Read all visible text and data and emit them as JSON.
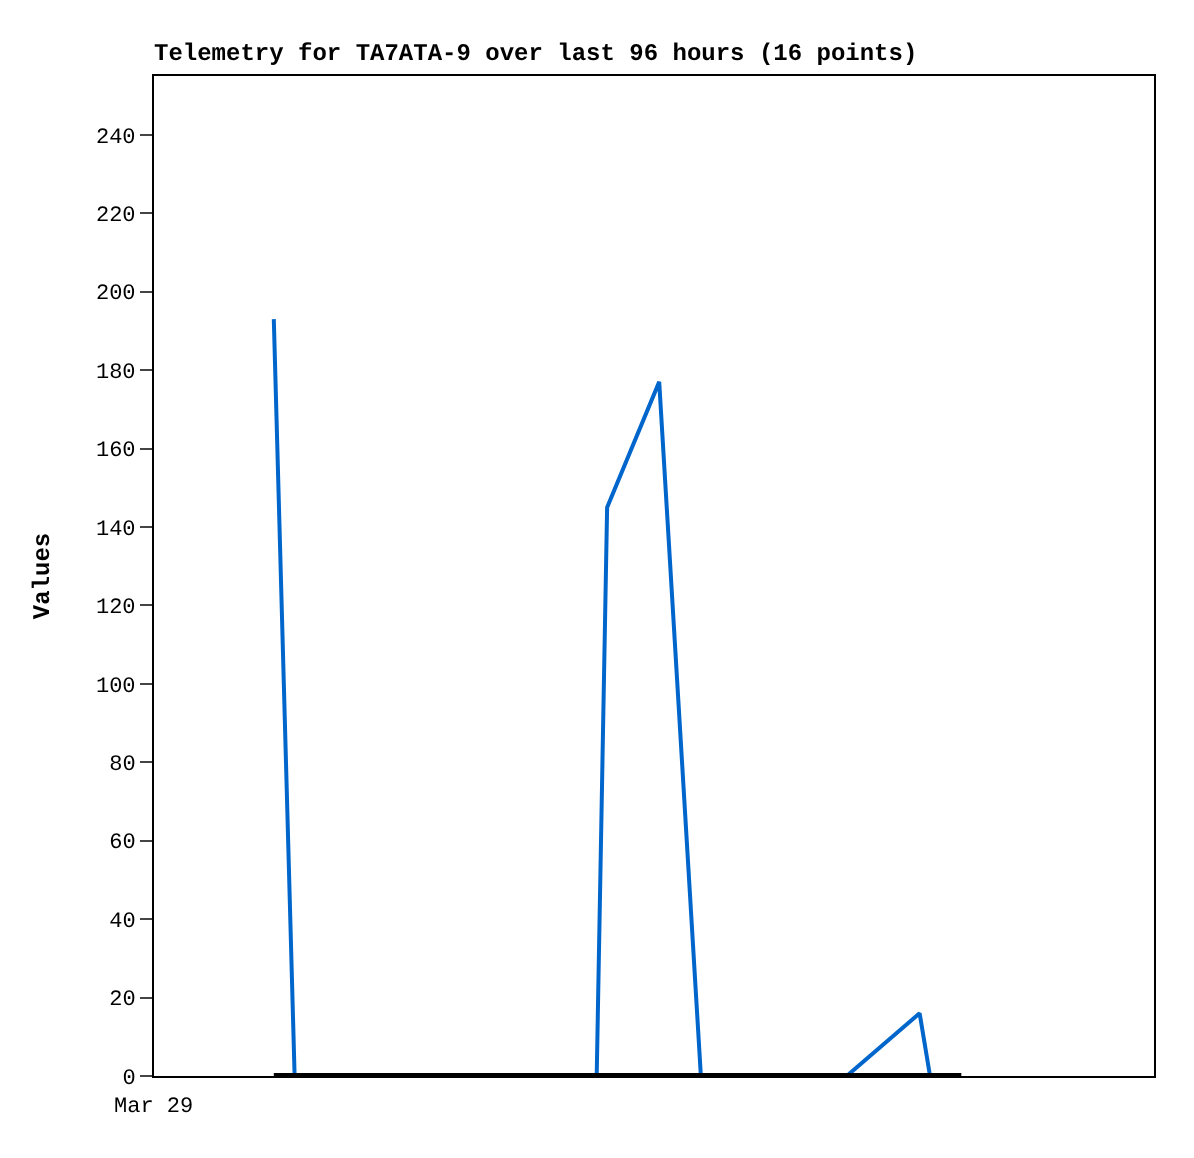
{
  "chart_data": {
    "type": "line",
    "title": "Telemetry for TA7ATA-9 over last 96 hours (16 points)",
    "ylabel": "Values",
    "annotations": [
      "Mar 29"
    ],
    "categories": [
      null,
      null,
      null,
      null,
      null,
      null,
      null,
      null,
      null,
      null,
      null,
      null,
      null,
      null,
      null,
      null,
      null,
      null,
      null,
      null,
      null,
      null,
      null,
      null,
      null,
      null,
      null,
      null,
      null,
      null,
      null,
      null,
      null,
      null,
      null,
      null,
      null,
      null,
      null,
      null,
      null,
      null,
      null,
      null,
      null,
      null,
      null,
      null,
      null,
      null,
      null,
      null,
      null,
      null,
      null,
      null,
      null,
      null,
      null,
      null,
      null,
      null,
      null,
      null,
      null,
      null,
      null,
      null,
      null,
      null,
      null,
      null,
      null,
      null,
      null,
      null,
      null,
      null,
      null,
      null,
      null,
      null,
      null,
      null,
      null,
      null,
      null,
      null,
      null,
      null,
      null,
      null,
      null,
      null,
      null,
      null
    ],
    "ylim": [
      0,
      255
    ],
    "yticks": [
      0,
      20,
      40,
      60,
      80,
      100,
      120,
      140,
      160,
      180,
      200,
      220,
      240
    ],
    "marker": "none",
    "line_style": "solid",
    "series": [
      {
        "color": "#0066cc",
        "values": [
          null,
          null,
          null,
          null,
          null,
          null,
          null,
          null,
          null,
          null,
          null,
          193,
          null,
          0,
          null,
          null,
          null,
          null,
          null,
          null,
          null,
          null,
          null,
          null,
          null,
          null,
          null,
          null,
          null,
          null,
          null,
          null,
          null,
          null,
          null,
          null,
          null,
          null,
          null,
          null,
          null,
          null,
          0,
          145,
          null,
          null,
          null,
          null,
          177,
          null,
          null,
          null,
          0,
          null,
          null,
          null,
          null,
          null,
          null,
          null,
          null,
          null,
          null,
          null,
          null,
          null,
          0,
          null,
          null,
          null,
          null,
          null,
          null,
          16,
          0,
          null,
          null,
          null,
          null,
          null,
          null,
          null,
          null,
          null,
          null,
          null,
          null,
          null,
          null,
          null,
          null,
          null,
          null,
          null,
          null,
          null
        ]
      },
      {
        "color": "#000000",
        "values": [
          null,
          null,
          null,
          null,
          null,
          null,
          null,
          null,
          null,
          null,
          null,
          0,
          null,
          null,
          null,
          null,
          null,
          null,
          null,
          null,
          null,
          null,
          null,
          null,
          null,
          null,
          null,
          null,
          null,
          null,
          null,
          null,
          null,
          null,
          null,
          null,
          null,
          null,
          null,
          null,
          null,
          null,
          null,
          null,
          null,
          null,
          null,
          null,
          null,
          null,
          null,
          null,
          null,
          null,
          null,
          null,
          null,
          null,
          null,
          null,
          null,
          null,
          null,
          null,
          null,
          null,
          null,
          null,
          null,
          null,
          null,
          null,
          null,
          null,
          null,
          null,
          null,
          0,
          null,
          null,
          null,
          null,
          null,
          null,
          null,
          null,
          null,
          null,
          null,
          null,
          null,
          null,
          null,
          null,
          null,
          null
        ]
      }
    ]
  }
}
